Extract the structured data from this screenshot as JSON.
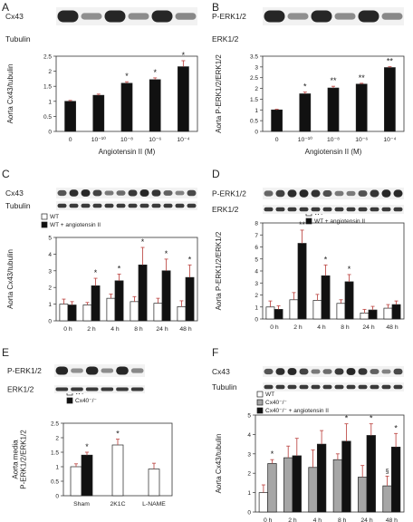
{
  "colors": {
    "black_bar": "#111111",
    "white_bar": "#ffffff",
    "gray_bar": "#a6a6a6",
    "error_bar": "#c0504d",
    "blot_band": "#1a1a1a"
  },
  "panels": {
    "A": {
      "letter": "A",
      "blot_labels": [
        "Cx43",
        "Tubulin"
      ]
    },
    "B": {
      "letter": "B",
      "blot_labels": [
        "P-ERK1/2",
        "ERK1/2"
      ]
    },
    "C": {
      "letter": "C",
      "blot_labels": [
        "Cx43",
        "Tubulin"
      ]
    },
    "D": {
      "letter": "D",
      "blot_labels": [
        "P-ERK1/2",
        "ERK1/2"
      ]
    },
    "E": {
      "letter": "E",
      "blot_labels": [
        "P-ERK1/2",
        "ERK1/2"
      ]
    },
    "F": {
      "letter": "F",
      "blot_labels": [
        "Cx43",
        "Tubulin"
      ]
    }
  },
  "chart_data": [
    {
      "panel": "A",
      "type": "bar",
      "categories": [
        "0",
        "10⁻¹⁰",
        "10⁻⁸",
        "10⁻⁶",
        "10⁻⁴"
      ],
      "series": [
        {
          "values": [
            1.0,
            1.2,
            1.6,
            1.72,
            2.15
          ],
          "errors": [
            0.03,
            0.04,
            0.05,
            0.06,
            0.2
          ],
          "color": "#111111"
        }
      ],
      "annotations": [
        "",
        "",
        "*",
        "*",
        "*"
      ],
      "ylabel": "Aorta Cx43/tubulin",
      "xlabel": "Angiotensin II (M)",
      "ylim": [
        0,
        2.5
      ],
      "yticks": [
        "0",
        "0.5",
        "1",
        "1.5",
        "2",
        "2.5"
      ],
      "legend": []
    },
    {
      "panel": "B",
      "type": "bar",
      "categories": [
        "0",
        "10⁻¹⁰",
        "10⁻⁸",
        "10⁻⁶",
        "10⁻⁴"
      ],
      "series": [
        {
          "values": [
            1.0,
            1.75,
            2.02,
            2.2,
            2.97
          ],
          "errors": [
            0.03,
            0.08,
            0.08,
            0.04,
            0.04
          ],
          "color": "#111111"
        }
      ],
      "annotations": [
        "",
        "*",
        "**",
        "**",
        "**"
      ],
      "ylabel": "Aorta P-ERK1/2/ERK1/2",
      "xlabel": "Angiotensin II (M)",
      "ylim": [
        0,
        3.5
      ],
      "yticks": [
        "0",
        "0.5",
        "1",
        "1.5",
        "2",
        "2.5",
        "3",
        "3.5"
      ],
      "legend": []
    },
    {
      "panel": "C",
      "type": "bar",
      "categories": [
        "0 h",
        "2 h",
        "4 h",
        "8 h",
        "24 h",
        "48 h"
      ],
      "series": [
        {
          "name": "WT",
          "values": [
            1.0,
            0.95,
            1.35,
            1.15,
            1.05,
            0.85
          ],
          "errors": [
            0.3,
            0.15,
            0.25,
            0.3,
            0.3,
            0.35
          ],
          "color": "#ffffff"
        },
        {
          "name": "WT + angiotensin II",
          "values": [
            0.95,
            2.1,
            2.4,
            3.35,
            3.0,
            2.6
          ],
          "errors": [
            0.2,
            0.45,
            0.4,
            1.05,
            0.7,
            0.75
          ],
          "color": "#111111"
        }
      ],
      "annotations": [
        "",
        "*",
        "*",
        "*",
        "*",
        "*"
      ],
      "ylabel": "Aorta Cx43/tubulin",
      "xlabel": "",
      "ylim": [
        0,
        5
      ],
      "yticks": [
        "0",
        "1",
        "2",
        "3",
        "4",
        "5"
      ],
      "legend": [
        "WT",
        "WT + angiotensin II"
      ]
    },
    {
      "panel": "D",
      "type": "bar",
      "categories": [
        "0 h",
        "2 h",
        "4 h",
        "8 h",
        "24 h",
        "48 h"
      ],
      "series": [
        {
          "name": "WT",
          "values": [
            1.0,
            1.6,
            1.55,
            1.3,
            0.5,
            0.9
          ],
          "errors": [
            0.5,
            0.6,
            0.5,
            0.3,
            0.3,
            0.3
          ],
          "color": "#ffffff"
        },
        {
          "name": "WT + angiotensin II",
          "values": [
            0.8,
            6.3,
            3.6,
            3.1,
            0.75,
            1.2
          ],
          "errors": [
            0.3,
            1.1,
            0.9,
            0.6,
            0.3,
            0.3
          ],
          "color": "#111111"
        }
      ],
      "annotations": [
        "",
        "**",
        "*",
        "*",
        "",
        ""
      ],
      "ylabel": "Aorta P-ERK1/2/ERK1/2",
      "xlabel": "",
      "ylim": [
        0,
        8
      ],
      "yticks": [
        "0",
        "1",
        "2",
        "3",
        "4",
        "5",
        "6",
        "7",
        "8"
      ],
      "legend": [
        "WT",
        "WT + angiotensin II"
      ]
    },
    {
      "panel": "E",
      "type": "bar",
      "categories": [
        "Sham",
        "2K1C",
        "L-NAME"
      ],
      "series": [
        {
          "name": "WT",
          "values": [
            1.0,
            1.75,
            0.92
          ],
          "errors": [
            0.1,
            0.2,
            0.2
          ],
          "color": "#ffffff"
        },
        {
          "name": "Cx40⁻/⁻",
          "values": [
            1.4,
            null,
            null
          ],
          "errors": [
            0.1,
            null,
            null
          ],
          "color": "#111111"
        }
      ],
      "annotations": [
        "*",
        "*",
        ""
      ],
      "ylabel": "Aorta media P-ERK1/2/ERK1/2",
      "xlabel": "",
      "ylim": [
        0,
        2.5
      ],
      "yticks": [
        "0",
        "0.5",
        "1",
        "1.5",
        "2",
        "2.5"
      ],
      "legend": [
        "WT",
        "Cx40⁻/⁻"
      ]
    },
    {
      "panel": "F",
      "type": "bar",
      "categories": [
        "0 h",
        "2 h",
        "4 h",
        "8 h",
        "24 h",
        "48 h"
      ],
      "series": [
        {
          "name": "WT",
          "values": [
            1.0,
            null,
            null,
            null,
            null,
            null
          ],
          "errors": [
            0.4,
            null,
            null,
            null,
            null,
            null
          ],
          "color": "#ffffff"
        },
        {
          "name": "Cx40⁻/⁻",
          "values": [
            2.5,
            2.8,
            2.3,
            2.7,
            1.8,
            1.35
          ],
          "errors": [
            0.2,
            0.6,
            0.9,
            0.3,
            0.6,
            0.5
          ],
          "color": "#a6a6a6"
        },
        {
          "name": "Cx40⁻/⁻ + angiotensin II",
          "values": [
            null,
            2.9,
            3.5,
            3.65,
            3.95,
            3.35
          ],
          "errors": [
            null,
            0.9,
            0.7,
            0.9,
            0.6,
            0.7
          ],
          "color": "#111111"
        }
      ],
      "annotations": [
        "*",
        "",
        "",
        "*",
        "*",
        "*"
      ],
      "extra_annotation": {
        "category": "48 h",
        "text": "§"
      },
      "ylabel": "Aorta Cx43/tubulin",
      "xlabel": "",
      "ylim": [
        0,
        5
      ],
      "yticks": [
        "0",
        "1",
        "2",
        "3",
        "4",
        "5"
      ],
      "legend": [
        "WT",
        "Cx40⁻/⁻",
        "Cx40⁻/⁻ + angiotensin II"
      ]
    }
  ]
}
